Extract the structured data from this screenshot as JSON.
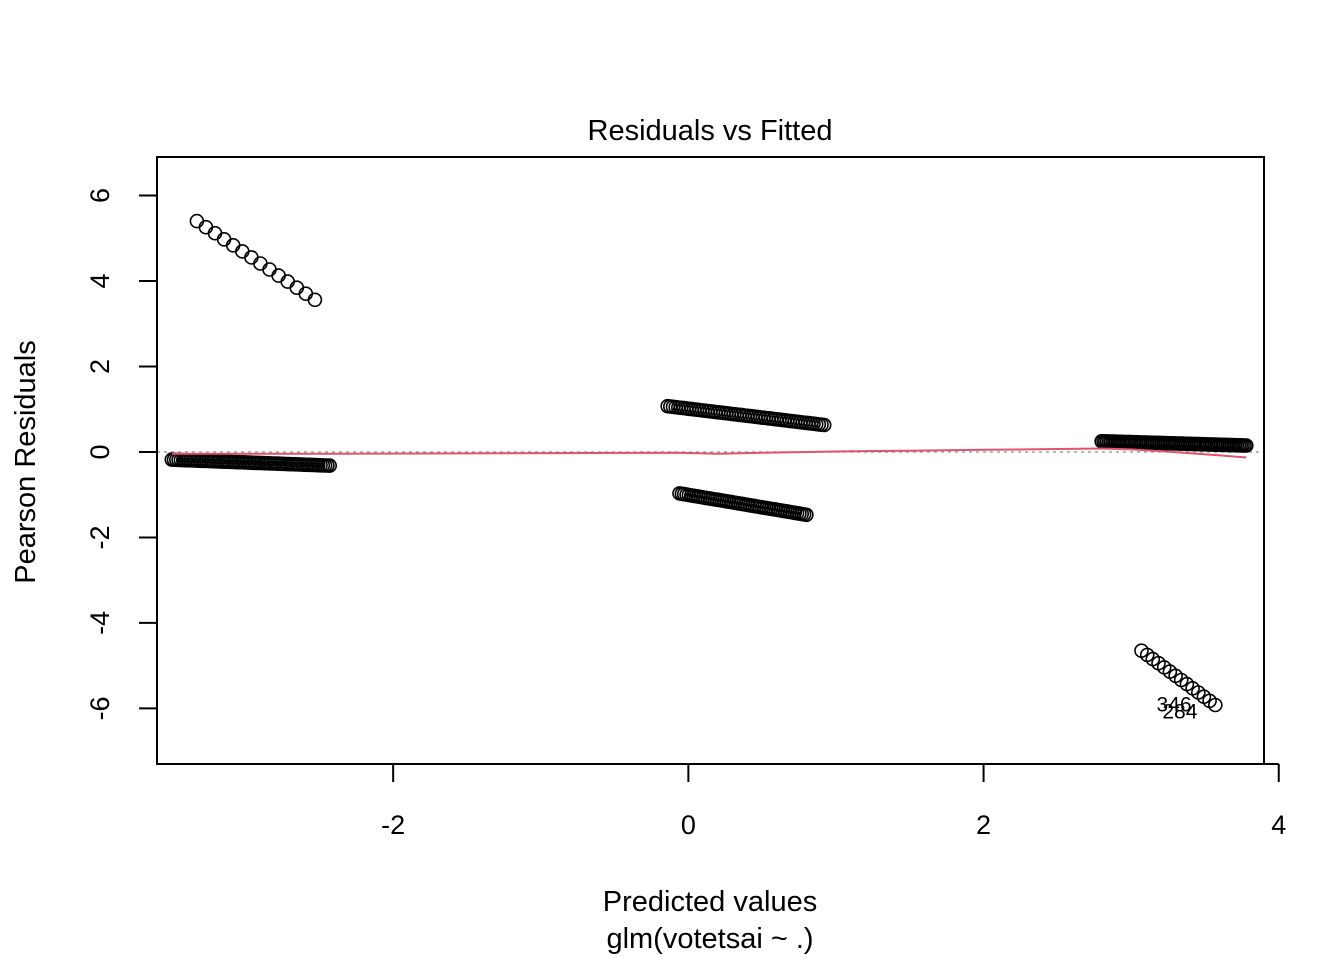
{
  "chart_data": {
    "type": "scatter",
    "title": "Residuals vs Fitted",
    "xlabel": "Predicted values",
    "xlabel2": "glm(votetsai ~ .)",
    "ylabel": "Pearson Residuals",
    "xlim": [
      -3.6,
      3.9
    ],
    "ylim": [
      -7.3,
      6.9
    ],
    "x_ticks": [
      -2,
      0,
      2,
      4
    ],
    "y_ticks": [
      -6,
      -4,
      -2,
      0,
      2,
      4,
      6
    ],
    "reference_line": {
      "y": 0,
      "style": "dotted",
      "color": "#9e9e9e"
    },
    "point_color": "#000000",
    "smooth_color": "#df536b",
    "clusters": [
      {
        "x0": -3.33,
        "y0": 5.4,
        "x1": -2.53,
        "y1": 3.56,
        "n": 14
      },
      {
        "x0": -3.5,
        "y0": -0.18,
        "x1": -2.43,
        "y1": -0.32,
        "n": 70
      },
      {
        "x0": -0.14,
        "y0": 1.07,
        "x1": 0.92,
        "y1": 0.63,
        "n": 60
      },
      {
        "x0": -0.06,
        "y0": -0.97,
        "x1": 0.8,
        "y1": -1.47,
        "n": 55
      },
      {
        "x0": 2.8,
        "y0": 0.25,
        "x1": 3.78,
        "y1": 0.15,
        "n": 80
      },
      {
        "x0": 3.07,
        "y0": -4.65,
        "x1": 3.57,
        "y1": -5.92,
        "n": 14
      }
    ],
    "smooth_line": {
      "x": [
        -3.5,
        -3.0,
        -2.5,
        -2.43,
        -0.06,
        0.2,
        0.5,
        1.0,
        1.5,
        2.0,
        2.5,
        2.8,
        3.0,
        3.2,
        3.4,
        3.6,
        3.78
      ],
      "y": [
        -0.04,
        -0.04,
        -0.04,
        -0.04,
        -0.02,
        -0.04,
        -0.02,
        0.01,
        0.03,
        0.05,
        0.07,
        0.08,
        0.06,
        0.02,
        -0.03,
        -0.08,
        -0.13
      ]
    },
    "annotations": [
      {
        "text": "346",
        "x": 3.29,
        "y": -5.88
      },
      {
        "text": "284",
        "x": 3.33,
        "y": -6.05
      }
    ]
  }
}
